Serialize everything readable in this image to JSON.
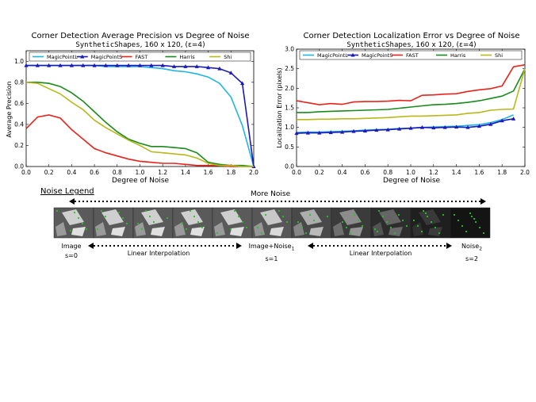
{
  "chart_data": [
    {
      "type": "line",
      "title": "Corner Detection Average Precision vs Degree of Noise",
      "subtitle_mono": "SyntheticShapes",
      "subtitle_rest": ", 160 x 120, (ε=4)",
      "xlabel": "Degree of Noise",
      "ylabel": "Average Precision",
      "xlim": [
        0,
        2.0
      ],
      "ylim": [
        0,
        1.1
      ],
      "xticks": [
        "0.0",
        "0.2",
        "0.4",
        "0.6",
        "0.8",
        "1.0",
        "1.2",
        "1.4",
        "1.6",
        "1.8",
        "2.0"
      ],
      "yticks": [
        "0.0",
        "0.2",
        "0.4",
        "0.6",
        "0.8",
        "1.0"
      ],
      "legend": "top",
      "x": [
        0.0,
        0.1,
        0.2,
        0.3,
        0.4,
        0.5,
        0.6,
        0.7,
        0.8,
        0.9,
        1.0,
        1.1,
        1.2,
        1.3,
        1.4,
        1.5,
        1.6,
        1.7,
        1.8,
        1.9,
        2.0
      ],
      "series": [
        {
          "name": "MagicPointL",
          "color": "#1fb4e8",
          "marker": "",
          "values": [
            0.96,
            0.96,
            0.96,
            0.96,
            0.96,
            0.96,
            0.96,
            0.95,
            0.95,
            0.95,
            0.95,
            0.94,
            0.93,
            0.91,
            0.9,
            0.88,
            0.85,
            0.79,
            0.66,
            0.39,
            0.0
          ]
        },
        {
          "name": "MagicPointS",
          "color": "#1a1ab8",
          "marker": "triangle",
          "values": [
            0.96,
            0.96,
            0.96,
            0.96,
            0.96,
            0.96,
            0.96,
            0.96,
            0.96,
            0.96,
            0.96,
            0.96,
            0.96,
            0.95,
            0.95,
            0.95,
            0.94,
            0.93,
            0.89,
            0.79,
            0.0
          ]
        },
        {
          "name": "FAST",
          "color": "#e8231c",
          "marker": "",
          "values": [
            0.36,
            0.47,
            0.49,
            0.46,
            0.35,
            0.26,
            0.17,
            0.13,
            0.1,
            0.07,
            0.05,
            0.04,
            0.03,
            0.03,
            0.02,
            0.01,
            0.01,
            0.01,
            0.0,
            0.0,
            0.0
          ]
        },
        {
          "name": "Harris",
          "color": "#1a8a1a",
          "marker": "",
          "values": [
            0.8,
            0.8,
            0.79,
            0.76,
            0.7,
            0.62,
            0.52,
            0.42,
            0.33,
            0.26,
            0.22,
            0.19,
            0.19,
            0.18,
            0.17,
            0.13,
            0.04,
            0.02,
            0.01,
            0.01,
            0.0
          ]
        },
        {
          "name": "Shi",
          "color": "#b8b81a",
          "marker": "",
          "values": [
            0.8,
            0.79,
            0.74,
            0.69,
            0.61,
            0.54,
            0.44,
            0.37,
            0.31,
            0.25,
            0.2,
            0.14,
            0.13,
            0.12,
            0.11,
            0.08,
            0.03,
            0.01,
            0.01,
            0.0,
            0.0
          ]
        }
      ]
    },
    {
      "type": "line",
      "title": "Corner Detection Localization Error vs Degree of Noise",
      "subtitle_mono": "SyntheticShapes",
      "subtitle_rest": ", 160 x 120, (ε=4)",
      "xlabel": "Degree of Noise",
      "ylabel": "Localization Error (pixels)",
      "xlim": [
        0,
        2.0
      ],
      "ylim": [
        0,
        3.0
      ],
      "xticks": [
        "0.0",
        "0.2",
        "0.4",
        "0.6",
        "0.8",
        "1.0",
        "1.2",
        "1.4",
        "1.6",
        "1.8",
        "2.0"
      ],
      "yticks": [
        "0.0",
        "0.5",
        "1.0",
        "1.5",
        "2.0",
        "2.5",
        "3.0"
      ],
      "legend": "top",
      "x": [
        0.0,
        0.1,
        0.2,
        0.3,
        0.4,
        0.5,
        0.6,
        0.7,
        0.8,
        0.9,
        1.0,
        1.1,
        1.2,
        1.3,
        1.4,
        1.5,
        1.6,
        1.7,
        1.8,
        1.9
      ],
      "x_extra": {
        "Harris": 2.0,
        "Shi": 2.0,
        "FAST": 2.0
      },
      "series": [
        {
          "name": "MagicPointL",
          "color": "#1fb4e8",
          "marker": "",
          "values": [
            0.87,
            0.88,
            0.88,
            0.89,
            0.9,
            0.91,
            0.93,
            0.94,
            0.95,
            0.97,
            0.98,
            1.0,
            1.01,
            1.02,
            1.03,
            1.05,
            1.07,
            1.12,
            1.2,
            1.32
          ]
        },
        {
          "name": "MagicPointS",
          "color": "#1a1ab8",
          "marker": "triangle",
          "values": [
            0.85,
            0.86,
            0.86,
            0.87,
            0.88,
            0.9,
            0.91,
            0.93,
            0.94,
            0.96,
            0.98,
            1.0,
            0.99,
            1.0,
            1.01,
            1.0,
            1.03,
            1.08,
            1.17,
            1.22
          ]
        },
        {
          "name": "FAST",
          "color": "#e8231c",
          "marker": "",
          "values": [
            1.68,
            1.63,
            1.58,
            1.61,
            1.59,
            1.65,
            1.66,
            1.66,
            1.67,
            1.69,
            1.68,
            1.82,
            1.83,
            1.85,
            1.86,
            1.92,
            1.96,
            1.99,
            2.06,
            2.55
          ],
          "extra_value": 2.6
        },
        {
          "name": "Harris",
          "color": "#1a8a1a",
          "marker": "",
          "values": [
            1.38,
            1.38,
            1.4,
            1.41,
            1.42,
            1.43,
            1.44,
            1.45,
            1.46,
            1.49,
            1.52,
            1.55,
            1.58,
            1.59,
            1.61,
            1.64,
            1.68,
            1.74,
            1.8,
            1.93
          ],
          "extra_value": 2.5
        },
        {
          "name": "Shi",
          "color": "#b8b81a",
          "marker": "",
          "values": [
            1.2,
            1.2,
            1.21,
            1.21,
            1.22,
            1.22,
            1.23,
            1.24,
            1.25,
            1.27,
            1.29,
            1.29,
            1.3,
            1.31,
            1.32,
            1.36,
            1.38,
            1.44,
            1.46,
            1.47
          ],
          "extra_value": 2.5
        }
      ]
    }
  ],
  "noise_legend": {
    "title": "Noise Legend",
    "more_noise": "More Noise",
    "image_label": "Image",
    "s0_label": "s=0",
    "interp_label_1": "Linear Interpolation",
    "image_noise_label": "Image+Noise",
    "image_noise_sub": "1",
    "s1_label": "s=1",
    "interp_label_2": "Linear Interpolation",
    "noise2_label": "Noise",
    "noise2_sub": "2",
    "s2_label": "s=2",
    "tiles": [
      0.0,
      0.0,
      0.0,
      0.0,
      0.0,
      0.05,
      0.25,
      0.45,
      0.65,
      0.85,
      1.0
    ],
    "colors": {
      "keypoint": "#23c423",
      "tile_bg": "#5a5a5a"
    }
  }
}
